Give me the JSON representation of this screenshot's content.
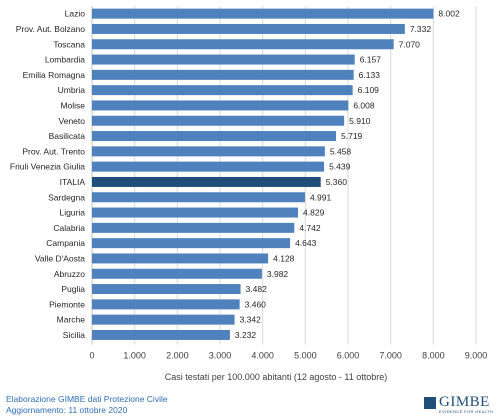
{
  "chart_data": {
    "type": "bar",
    "orientation": "horizontal",
    "categories": [
      "Lazio",
      "Prov. Aut. Bolzano",
      "Toscana",
      "Lombardia",
      "Emilia Romagna",
      "Umbria",
      "Molise",
      "Veneto",
      "Basilicata",
      "Prov. Aut. Trento",
      "Friuli Venezia Giulia",
      "ITALIA",
      "Sardegna",
      "Liguria",
      "Calabria",
      "Campania",
      "Valle D'Aosta",
      "Abruzzo",
      "Puglia",
      "Piemonte",
      "Marche",
      "Sicilia"
    ],
    "values": [
      8002,
      7332,
      7070,
      6157,
      6133,
      6109,
      6008,
      5910,
      5719,
      5458,
      5439,
      5360,
      4991,
      4829,
      4742,
      4643,
      4128,
      3982,
      3482,
      3460,
      3342,
      3232
    ],
    "value_labels": [
      "8.002",
      "7.332",
      "7.070",
      "6.157",
      "6.133",
      "6.109",
      "6.008",
      "5.910",
      "5.719",
      "5.458",
      "5.439",
      "5.360",
      "4.991",
      "4.829",
      "4.742",
      "4.643",
      "4.128",
      "3.982",
      "3.482",
      "3.460",
      "3.342",
      "3.232"
    ],
    "highlight": "ITALIA",
    "xlim": [
      0,
      9000
    ],
    "x_ticks": [
      0,
      1000,
      2000,
      3000,
      4000,
      5000,
      6000,
      7000,
      8000,
      9000
    ],
    "x_tick_labels": [
      "0",
      "1.000",
      "2.000",
      "3.000",
      "4.000",
      "5.000",
      "6.000",
      "7.000",
      "8.000",
      "9.000"
    ],
    "xlabel": "Casi testati per 100.000 abitanti (12 agosto - 11 ottobre)",
    "title": "",
    "grid": "vertical",
    "colors": {
      "bar": "#4f81bd",
      "highlight": "#1f4e79",
      "grid": "#d9d9d9",
      "axis": "#bfbfbf"
    }
  },
  "footer": {
    "line1": "Elaborazione GIMBE dati Protezione Civile",
    "line2": "Aggiornamento: 11 ottobre 2020"
  },
  "logo": {
    "name": "GIMBE",
    "tagline": "EVIDENCE FOR HEALTH"
  }
}
